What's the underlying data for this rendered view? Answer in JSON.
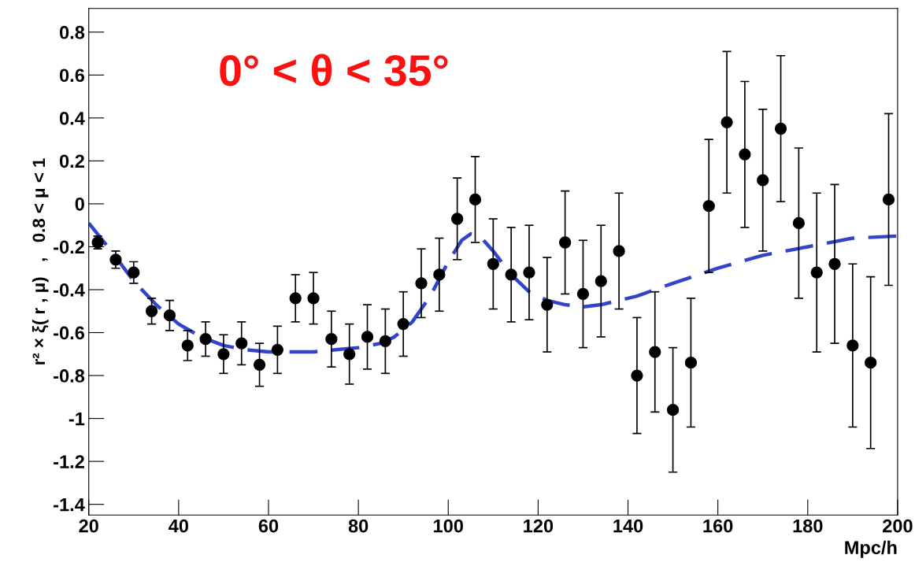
{
  "chart_data": {
    "type": "scatter",
    "xlabel": "Mpc/h",
    "ylabel": "r² × ξ( r , μ)   ,   0.8 < μ < 1",
    "annotations": [
      "0° < θ < 35°"
    ],
    "xlim": [
      20,
      200
    ],
    "xticks": [
      20,
      40,
      60,
      80,
      100,
      120,
      140,
      160,
      180,
      200
    ],
    "ylim": [
      -1.45,
      0.91
    ],
    "yticks": [
      -1.4,
      -1.2,
      -1,
      -0.8,
      -0.6,
      -0.4,
      -0.2,
      0,
      0.2,
      0.4,
      0.6,
      0.8
    ],
    "grid": false,
    "legend": false,
    "series": [
      {
        "color": "#000000",
        "marker": "circle",
        "x": [
          22,
          26,
          30,
          34,
          38,
          42,
          46,
          50,
          54,
          58,
          62,
          66,
          70,
          74,
          78,
          82,
          86,
          90,
          94,
          98,
          102,
          106,
          110,
          114,
          118,
          122,
          126,
          130,
          134,
          138,
          142,
          146,
          150,
          154,
          158,
          162,
          166,
          170,
          174,
          178,
          182,
          186,
          190,
          194,
          198
        ],
        "values": [
          -0.18,
          -0.26,
          -0.32,
          -0.5,
          -0.52,
          -0.66,
          -0.63,
          -0.7,
          -0.65,
          -0.75,
          -0.68,
          -0.44,
          -0.44,
          -0.63,
          -0.7,
          -0.62,
          -0.64,
          -0.56,
          -0.37,
          -0.33,
          -0.07,
          0.02,
          -0.28,
          -0.33,
          -0.32,
          -0.47,
          -0.18,
          -0.42,
          -0.36,
          -0.22,
          -0.8,
          -0.69,
          -0.96,
          -0.74,
          -0.01,
          0.38,
          0.23,
          0.11,
          0.35,
          -0.09,
          -0.32,
          -0.28,
          -0.66,
          -0.74,
          0.02
        ],
        "errors": [
          0.03,
          0.04,
          0.05,
          0.06,
          0.07,
          0.07,
          0.08,
          0.09,
          0.1,
          0.1,
          0.11,
          0.11,
          0.12,
          0.13,
          0.14,
          0.15,
          0.15,
          0.15,
          0.16,
          0.17,
          0.19,
          0.2,
          0.21,
          0.22,
          0.22,
          0.22,
          0.24,
          0.25,
          0.26,
          0.27,
          0.27,
          0.28,
          0.29,
          0.3,
          0.31,
          0.33,
          0.34,
          0.33,
          0.34,
          0.35,
          0.37,
          0.37,
          0.38,
          0.4,
          0.4
        ]
      },
      {
        "type": "line",
        "color": "#3344cc",
        "line_style": "dashed",
        "marker": "none",
        "x": [
          20,
          25,
          30,
          35,
          40,
          45,
          50,
          55,
          60,
          65,
          70,
          75,
          80,
          85,
          88,
          92,
          96,
          100,
          103,
          105,
          107,
          110,
          114,
          118,
          122,
          126,
          130,
          134,
          138,
          142,
          150,
          160,
          170,
          180,
          190,
          200
        ],
        "values": [
          -0.09,
          -0.22,
          -0.36,
          -0.47,
          -0.56,
          -0.62,
          -0.66,
          -0.68,
          -0.69,
          -0.69,
          -0.69,
          -0.68,
          -0.67,
          -0.65,
          -0.62,
          -0.55,
          -0.43,
          -0.27,
          -0.17,
          -0.14,
          -0.15,
          -0.22,
          -0.33,
          -0.41,
          -0.45,
          -0.47,
          -0.48,
          -0.47,
          -0.45,
          -0.43,
          -0.37,
          -0.3,
          -0.24,
          -0.2,
          -0.16,
          -0.15
        ]
      }
    ]
  }
}
